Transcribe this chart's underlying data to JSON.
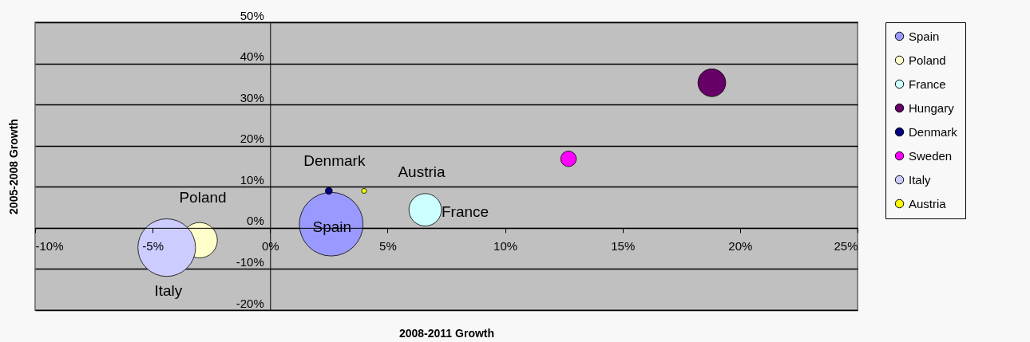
{
  "chart_data": {
    "type": "bubble",
    "xlabel": "2008-2011 Growth",
    "ylabel": "2005-2008 Growth",
    "xlim": [
      -10,
      25
    ],
    "ylim": [
      -20,
      50
    ],
    "xticks": [
      {
        "value": -10,
        "label": "-10%"
      },
      {
        "value": -5,
        "label": "-5%"
      },
      {
        "value": 0,
        "label": "0%"
      },
      {
        "value": 5,
        "label": "5%"
      },
      {
        "value": 10,
        "label": "10%"
      },
      {
        "value": 15,
        "label": "15%"
      },
      {
        "value": 20,
        "label": "20%"
      },
      {
        "value": 25,
        "label": "25%"
      }
    ],
    "yticks": [
      {
        "value": -20,
        "label": "-20%"
      },
      {
        "value": -10,
        "label": "-10%"
      },
      {
        "value": 0,
        "label": "0%"
      },
      {
        "value": 10,
        "label": "10%"
      },
      {
        "value": 20,
        "label": "20%"
      },
      {
        "value": 30,
        "label": "30%"
      },
      {
        "value": 40,
        "label": "40%"
      },
      {
        "value": 50,
        "label": "50%"
      }
    ],
    "grid": "y",
    "legend": "right",
    "marker": "circle",
    "series": [
      {
        "name": "Spain",
        "color": "#9999ff",
        "x": [
          2.6
        ],
        "values": [
          0.9
        ],
        "sizes": [
          1
        ]
      },
      {
        "name": "Poland",
        "color": "#ffffcc",
        "x": [
          -3.0
        ],
        "values": [
          -3.0
        ],
        "sizes": [
          0.31
        ]
      },
      {
        "name": "France",
        "color": "#ccffff",
        "x": [
          6.6
        ],
        "values": [
          4.4
        ],
        "sizes": [
          0.26
        ]
      },
      {
        "name": "Hungary",
        "color": "#660066",
        "x": [
          18.8
        ],
        "values": [
          35.3
        ],
        "sizes": [
          0.19
        ]
      },
      {
        "name": "Denmark",
        "color": "#000080",
        "x": [
          2.5
        ],
        "values": [
          9.0
        ],
        "sizes": [
          0.012
        ]
      },
      {
        "name": "Sweden",
        "color": "#ff00ff",
        "x": [
          12.7
        ],
        "values": [
          16.8
        ],
        "sizes": [
          0.06
        ]
      },
      {
        "name": "Italy",
        "color": "#ccccff",
        "x": [
          -4.4
        ],
        "values": [
          -4.8
        ],
        "sizes": [
          0.82
        ]
      },
      {
        "name": "Austria",
        "color": "#ffff00",
        "x": [
          4.0
        ],
        "values": [
          9.0
        ],
        "sizes": [
          0.006
        ]
      }
    ],
    "annotations": [
      {
        "text": "Denmark",
        "x": 2.5,
        "y": 9.0
      },
      {
        "text": "Austria",
        "x": 4.0,
        "y": 9.0
      },
      {
        "text": "Poland",
        "x": -3.0,
        "y": -3.0
      },
      {
        "text": "Spain",
        "x": 2.6,
        "y": 0.9
      },
      {
        "text": "France",
        "x": 6.6,
        "y": 4.4
      },
      {
        "text": "Italy",
        "x": -4.4,
        "y": -4.8
      }
    ]
  }
}
